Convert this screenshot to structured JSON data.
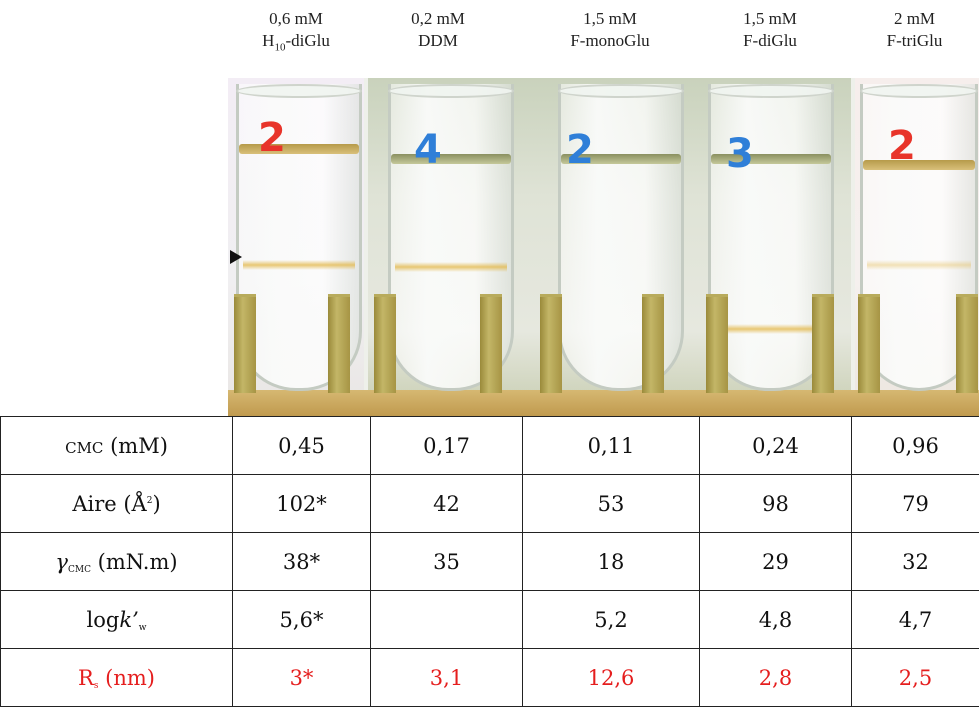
{
  "columns": [
    {
      "conc": "0,6 mM",
      "name_main": "H",
      "name_sub": "10",
      "name_rest": "-diGlu"
    },
    {
      "conc": "0,2 mM",
      "name_main": "DDM",
      "name_sub": "",
      "name_rest": ""
    },
    {
      "conc": "1,5 mM",
      "name_main": "F-monoGlu",
      "name_sub": "",
      "name_rest": ""
    },
    {
      "conc": "1,5 mM",
      "name_main": "F-diGlu",
      "name_sub": "",
      "name_rest": ""
    },
    {
      "conc": "2 mM",
      "name_main": "F-triGlu",
      "name_sub": "",
      "name_rest": ""
    }
  ],
  "tube_labels": [
    "2",
    "4",
    "2",
    "3",
    "2"
  ],
  "colors": {
    "red_row": "#e51e1e",
    "red_label": "#e8342a",
    "blue_label": "#2f7fd8"
  },
  "table": {
    "row_cmc": {
      "label": "CMC",
      "unit": " (mM)",
      "values": [
        "0,45",
        "0,17",
        "0,11",
        "0,24",
        "0,96"
      ]
    },
    "row_aire": {
      "label": "Aire (Å",
      "sup": "2",
      "close": ")",
      "values": [
        "102*",
        "42",
        "53",
        "98",
        "79"
      ]
    },
    "row_gamma": {
      "label": "γ",
      "sub": "CMC",
      "unit": " (mN.m)",
      "values": [
        "38*",
        "35",
        "18",
        "29",
        "32"
      ]
    },
    "row_logk": {
      "label": "log",
      "k": "k’",
      "sub": "w",
      "values": [
        "5,6*",
        "",
        "5,2",
        "4,8",
        "4,7"
      ]
    },
    "row_rs": {
      "label": "R",
      "sub": "s",
      "unit": " (nm)",
      "values": [
        "3*",
        "3,1",
        "12,6",
        "2,8",
        "2,5"
      ]
    }
  }
}
